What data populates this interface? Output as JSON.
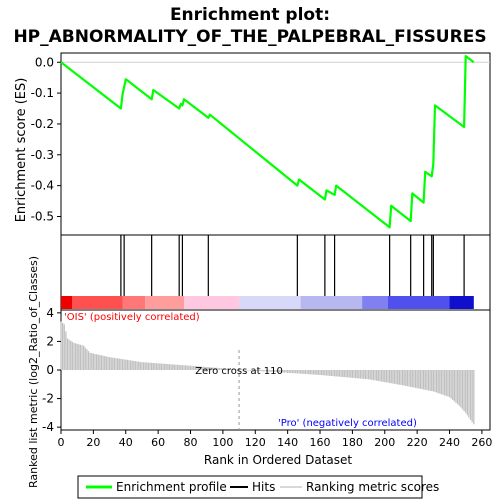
{
  "chart_data": {
    "type": "line",
    "title_line1": "Enrichment plot:",
    "title_line2": "HP_ABNORMALITY_OF_THE_PALPEBRAL_FISSURES",
    "es_panel": {
      "ylabel": "Enrichment score (ES)",
      "ylim": [
        -0.56,
        0.03
      ],
      "yticks": [
        "0.0",
        "-0.1",
        "-0.2",
        "-0.3",
        "-0.4",
        "-0.5"
      ],
      "ytick_values": [
        0.0,
        -0.1,
        -0.2,
        -0.3,
        -0.4,
        -0.5
      ],
      "series": [
        {
          "name": "Enrichment profile",
          "color": "#00ff00",
          "x": [
            0,
            37,
            38,
            40,
            56,
            57,
            73,
            74,
            75,
            76,
            91,
            92,
            146,
            147,
            163,
            164,
            169,
            170,
            203,
            204,
            216,
            217,
            224,
            225,
            229,
            230,
            231,
            249,
            250,
            255
          ],
          "y": [
            0.0,
            -0.15,
            -0.105,
            -0.055,
            -0.12,
            -0.09,
            -0.15,
            -0.135,
            -0.14,
            -0.12,
            -0.18,
            -0.17,
            -0.4,
            -0.38,
            -0.445,
            -0.415,
            -0.43,
            -0.4,
            -0.535,
            -0.465,
            -0.515,
            -0.425,
            -0.455,
            -0.355,
            -0.37,
            -0.33,
            -0.14,
            -0.21,
            0.02,
            0.0
          ]
        }
      ]
    },
    "hits": {
      "name": "Hits",
      "positions": [
        37,
        39,
        56,
        73,
        75,
        91,
        146,
        163,
        169,
        203,
        216,
        224,
        229,
        230,
        249
      ]
    },
    "rank_panel": {
      "ylabel": "Ranked list metric (log2_Ratio_of_Classes)",
      "xlabel": "Rank in Ordered Dataset",
      "xlim": [
        0,
        265
      ],
      "ylim": [
        -4.2,
        4.2
      ],
      "xticks": [
        "0",
        "20",
        "40",
        "60",
        "80",
        "100",
        "120",
        "140",
        "160",
        "180",
        "200",
        "220",
        "240",
        "260"
      ],
      "xtick_values": [
        0,
        20,
        40,
        60,
        80,
        100,
        120,
        140,
        160,
        180,
        200,
        220,
        240,
        260
      ],
      "yticks": [
        "4",
        "2",
        "0",
        "-2",
        "-4"
      ],
      "ytick_values": [
        4,
        2,
        0,
        -2,
        -4
      ],
      "zero_cross_label": "Zero cross at 110",
      "zero_cross": 110,
      "positive_label": "'OIS' (positively correlated)",
      "negative_label": "'Pro' (negatively correlated)",
      "metric_name": "Ranking metric scores",
      "n_ranks": 255,
      "metric_profile": [
        [
          0,
          3.4
        ],
        [
          2,
          3.2
        ],
        [
          4,
          2.2
        ],
        [
          8,
          1.9
        ],
        [
          14,
          1.7
        ],
        [
          18,
          1.2
        ],
        [
          30,
          0.9
        ],
        [
          50,
          0.55
        ],
        [
          80,
          0.3
        ],
        [
          100,
          0.12
        ],
        [
          110,
          0.0
        ],
        [
          130,
          -0.12
        ],
        [
          160,
          -0.35
        ],
        [
          190,
          -0.65
        ],
        [
          210,
          -1.05
        ],
        [
          230,
          -1.5
        ],
        [
          240,
          -1.9
        ],
        [
          246,
          -2.5
        ],
        [
          250,
          -3.0
        ],
        [
          253,
          -3.5
        ],
        [
          255,
          -3.8
        ]
      ]
    },
    "colors": {
      "profile": "#00ff00",
      "hits": "#000000",
      "metric": "#c0c0c0",
      "positive": "#ff0000",
      "negative": "#0000ff",
      "axis": "#000000"
    },
    "legend": {
      "items": [
        "Enrichment profile",
        "Hits",
        "Ranking metric scores"
      ],
      "placement": "bottom"
    }
  }
}
